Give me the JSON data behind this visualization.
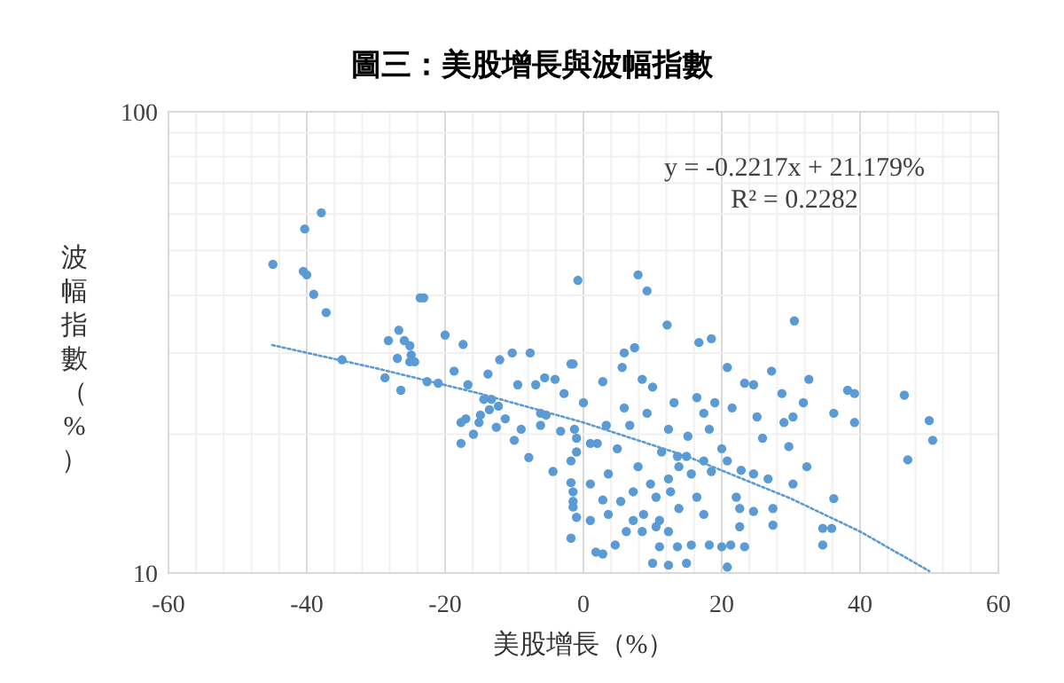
{
  "chart_data": {
    "type": "scatter",
    "title": "圖三：美股增長與波幅指數",
    "xlabel": "美股增長（%）",
    "ylabel": "波幅指數（%）",
    "annotations": [
      "y = -0.2217x + 21.179%",
      "R² = 0.2282"
    ],
    "xlim": [
      -60,
      60
    ],
    "xticks": [
      -60,
      -40,
      -20,
      0,
      20,
      40,
      60
    ],
    "ylim": [
      10,
      100
    ],
    "yticks": [
      10,
      100
    ],
    "log": true,
    "grid": true,
    "marker": "circle",
    "series": [
      {
        "type": "scatter",
        "color": "#5b9bd5",
        "x": [
          -44.9,
          -40.3,
          -37.9,
          -40.5,
          -40,
          -39,
          -37.2,
          -34.9,
          -28.7,
          -28.2,
          -26.7,
          -25.9,
          -25.1,
          -26.9,
          -24.9,
          -25.1,
          -24.4,
          -26.4,
          -23.6,
          -23.1,
          -22.6,
          -21,
          -20,
          -18.7,
          -17.4,
          -16.7,
          -17.7,
          -17,
          -17.7,
          -15.9,
          -15.1,
          -14.9,
          -13.8,
          -14.4,
          -13.3,
          -13.6,
          -12.3,
          -12.6,
          -12.1,
          -11.3,
          -10.3,
          -10,
          -9.5,
          -9,
          -7.9,
          -7.7,
          -6.9,
          -6.2,
          -6.2,
          -5.4,
          -5.6,
          -4.1,
          -4.4,
          -3.3,
          -2.8,
          -1.8,
          -0.8,
          -1.3,
          -1,
          -1,
          -1.8,
          -1.8,
          -1.5,
          -1.5,
          -1.5,
          -1,
          -1.8,
          0,
          7.9,
          9.2,
          12.1,
          16.7,
          18.5,
          30.5,
          5.9,
          7.4,
          5.6,
          -1.5,
          2.8,
          8.5,
          10,
          13.1,
          16.4,
          20.8,
          23.3,
          27.2,
          32.6,
          28.7,
          38.2,
          39.2,
          36.2,
          39.2,
          46.4,
          50,
          50.5,
          46.9,
          36.2,
          34.6,
          35.9,
          34.6,
          30.3,
          29.7,
          32.3,
          27.4,
          27.4,
          24.6,
          23.3,
          20.8,
          22.6,
          22.1,
          18.5,
          20,
          24.6,
          25.9,
          26.7,
          29,
          25.1,
          15.1,
          13.6,
          13.8,
          12.3,
          10.5,
          8.7,
          7.2,
          6.2,
          4.6,
          2.8,
          1.8,
          1,
          1,
          2.8,
          3.6,
          4.9,
          6.7,
          7.9,
          9.7,
          11,
          12.3,
          13.6,
          14.9,
          12.3,
          10,
          11,
          15.6,
          17.4,
          18.2,
          20,
          16.4,
          13.8,
          12.6,
          15.6,
          14.9,
          17.4,
          20.8,
          22.8,
          22.6,
          21.3,
          17.4,
          18.2,
          19,
          9.2,
          5.9,
          3.3,
          1,
          12.3,
          11.3,
          2,
          21.5,
          24.6,
          30.3,
          31.8,
          3.6,
          5.4,
          7.2,
          8.5,
          10.5
        ],
        "values": [
          46.7,
          55.7,
          60.4,
          45.1,
          44.3,
          40.2,
          36.7,
          29,
          26.5,
          31.9,
          33.6,
          31.9,
          31.1,
          29.2,
          29.7,
          28.7,
          28.7,
          24.9,
          39.5,
          39.5,
          26,
          25.8,
          32.8,
          27.4,
          31.3,
          25.6,
          21.2,
          21.6,
          19.1,
          20,
          21.2,
          22,
          27,
          23.8,
          23.8,
          22.6,
          23,
          20.7,
          29,
          21.6,
          30,
          19.4,
          25.6,
          20.5,
          17.8,
          30,
          25.6,
          22.2,
          20.9,
          22,
          26.5,
          26.3,
          16.6,
          20.3,
          24.5,
          28.4,
          43.1,
          20.5,
          19.6,
          18.3,
          17.5,
          15.7,
          15,
          14.3,
          13.9,
          13.2,
          11.9,
          23.4,
          44.3,
          40.9,
          34.5,
          31.6,
          32.2,
          35.2,
          30,
          30.8,
          27.9,
          28.4,
          26,
          26.3,
          25.3,
          23.4,
          24,
          27.9,
          25.8,
          27.4,
          26.3,
          24.5,
          24.9,
          24.5,
          22.2,
          21.2,
          24.3,
          21.4,
          19.4,
          17.6,
          14.5,
          12.5,
          12.5,
          11.5,
          15.6,
          18.8,
          17,
          13.8,
          12.7,
          13.6,
          11.4,
          10.3,
          12.6,
          14.6,
          16.6,
          18.6,
          16.4,
          19.6,
          16,
          21.2,
          21.8,
          19.8,
          17.9,
          17,
          16,
          14.6,
          13.4,
          13,
          12.3,
          11.5,
          11,
          11.1,
          13,
          15.6,
          14.4,
          16.4,
          18.6,
          20.9,
          17,
          15.6,
          13,
          12.3,
          11.4,
          10.5,
          10.4,
          10.5,
          11.4,
          11.5,
          13.4,
          11.5,
          11.4,
          14.6,
          13.8,
          15,
          16.4,
          17.9,
          17.5,
          17.5,
          16.7,
          13.8,
          11.5,
          22.2,
          20.5,
          23.4,
          22.2,
          22.8,
          20.9,
          19.1,
          20.5,
          18.3,
          19.1,
          22.8,
          25.6,
          21.8,
          23.4,
          13.4,
          14.3,
          15,
          12.3,
          12.6
        ]
      },
      {
        "type": "line",
        "color": "#5b9bd5",
        "line_style": "dotted",
        "marker": "none",
        "x": [
          -45,
          -30,
          -15,
          0,
          15,
          30,
          40,
          50
        ],
        "values": [
          31.2,
          27.8,
          24.5,
          21.2,
          17.9,
          14.5,
          12.3,
          10.1
        ]
      }
    ]
  }
}
